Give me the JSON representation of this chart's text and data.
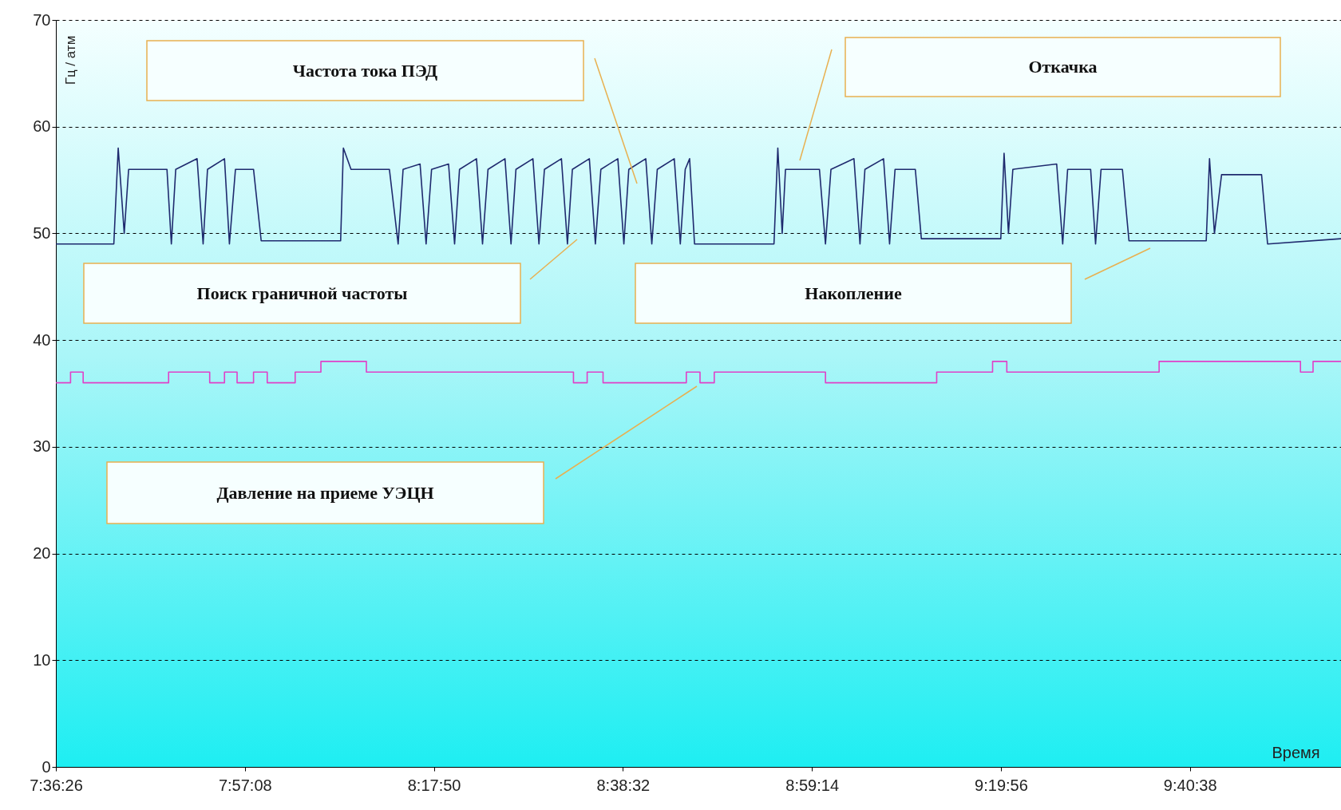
{
  "chart_data": {
    "type": "line",
    "xlabel": "Время",
    "ylabel": "Гц / атм",
    "xlim": [
      7.60722,
      9.953
    ],
    "ylim": [
      0,
      70
    ],
    "xticks": [
      {
        "value": 7.60722,
        "label": "7:36:26"
      },
      {
        "value": 7.95222,
        "label": "7:57:08"
      },
      {
        "value": 8.29722,
        "label": "8:17:50"
      },
      {
        "value": 8.64222,
        "label": "8:38:32"
      },
      {
        "value": 8.98722,
        "label": "8:59:14"
      },
      {
        "value": 9.33222,
        "label": "9:19:56"
      },
      {
        "value": 9.67722,
        "label": "9:40:38"
      }
    ],
    "yticks": [
      0,
      10,
      20,
      30,
      40,
      50,
      60,
      70
    ],
    "grid": "y",
    "annotations": [
      "Частота тока ПЭД",
      "Откачка",
      "Поиск граничной частоты",
      "Накопление",
      "Давление на приеме УЭЦН"
    ],
    "series": [
      {
        "type": "line",
        "color": "#1f2a6e",
        "x": [
          7.6073,
          7.713,
          7.721,
          7.732,
          7.74,
          7.81,
          7.818,
          7.826,
          7.865,
          7.876,
          7.884,
          7.915,
          7.924,
          7.935,
          7.968,
          7.982,
          8.127,
          8.132,
          8.146,
          8.216,
          8.232,
          8.241,
          8.272,
          8.283,
          8.293,
          8.324,
          8.335,
          8.344,
          8.375,
          8.386,
          8.396,
          8.427,
          8.438,
          8.447,
          8.478,
          8.489,
          8.499,
          8.53,
          8.541,
          8.55,
          8.581,
          8.592,
          8.602,
          8.633,
          8.644,
          8.653,
          8.684,
          8.695,
          8.705,
          8.736,
          8.747,
          8.756,
          8.764,
          8.773,
          8.918,
          8.925,
          8.933,
          8.939,
          9.001,
          9.012,
          9.022,
          9.064,
          9.075,
          9.084,
          9.118,
          9.129,
          9.139,
          9.176,
          9.187,
          9.332,
          9.338,
          9.346,
          9.354,
          9.434,
          9.445,
          9.454,
          9.496,
          9.505,
          9.515,
          9.554,
          9.566,
          9.707,
          9.713,
          9.722,
          9.735,
          9.808,
          9.819,
          9.953
        ],
        "values": [
          49,
          49,
          58,
          50,
          56,
          56,
          49,
          56,
          57,
          49,
          56,
          57,
          49,
          56,
          56,
          49.3,
          49.3,
          58,
          56,
          56,
          49,
          56,
          56.5,
          49,
          56,
          56.5,
          49,
          56,
          57,
          49,
          56,
          57,
          49,
          56,
          57,
          49,
          56,
          57,
          49,
          56,
          57,
          49,
          56,
          57,
          49,
          56,
          57,
          49,
          56,
          57,
          49,
          56,
          57,
          49,
          49,
          58,
          50,
          56,
          56,
          49,
          56,
          57,
          49,
          56,
          57,
          49,
          56,
          56,
          49.5,
          49.5,
          57.5,
          50,
          56,
          56.5,
          49,
          56,
          56,
          49,
          56,
          56,
          49.3,
          49.3,
          57,
          50,
          55.5,
          55.5,
          49,
          49.5
        ]
      },
      {
        "type": "step",
        "color": "#e040c8",
        "x": [
          7.6073,
          7.634,
          7.657,
          7.813,
          7.888,
          7.915,
          7.938,
          7.968,
          7.993,
          8.044,
          8.091,
          8.174,
          8.552,
          8.577,
          8.606,
          8.758,
          8.783,
          8.809,
          9.012,
          9.215,
          9.317,
          9.343,
          9.621,
          9.879,
          9.902,
          9.953
        ],
        "values": [
          36,
          37,
          36,
          37,
          36,
          37,
          36,
          37,
          36,
          37,
          38,
          37,
          36,
          37,
          36,
          37,
          36,
          37,
          36,
          37,
          38,
          37,
          38,
          37,
          38,
          38
        ]
      }
    ]
  }
}
